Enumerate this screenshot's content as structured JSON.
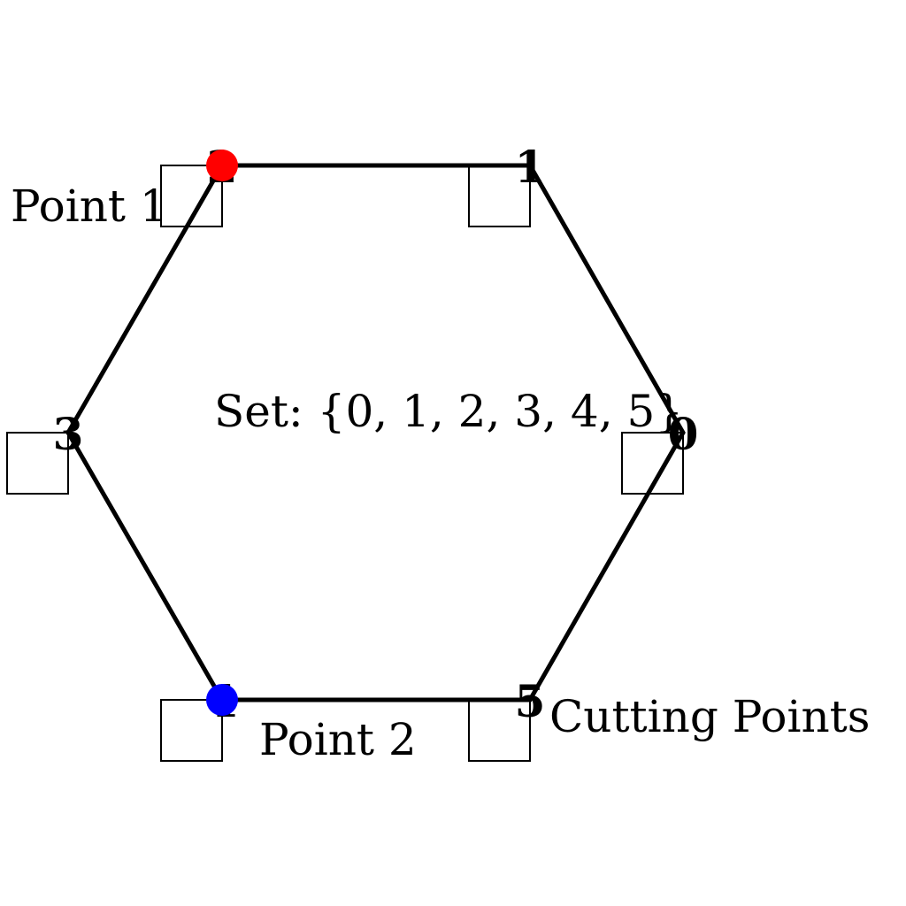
{
  "diagram": {
    "vertex_labels": [
      "0",
      "1",
      "2",
      "3",
      "4",
      "5"
    ],
    "set_label": "Set: {0, 1, 2, 3, 4, 5}",
    "point1_label": "Point 1",
    "point2_label": "Point 2",
    "cutting_label": "Cutting Points",
    "colors": {
      "edge": "#000000",
      "point1": "#ff0000",
      "point2": "#0000ff"
    }
  }
}
